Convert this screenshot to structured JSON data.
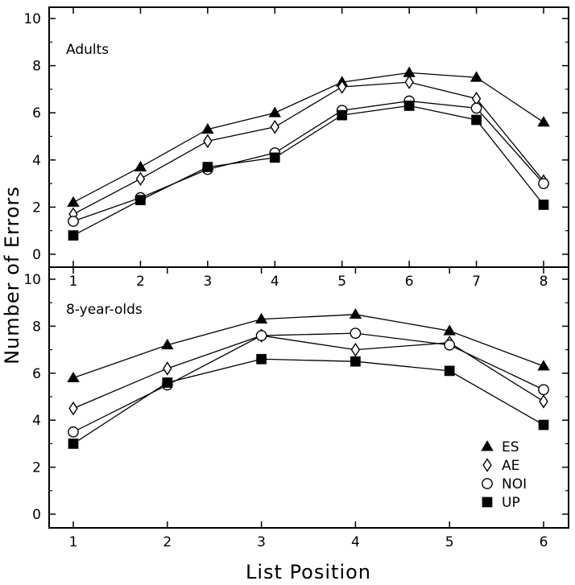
{
  "chart_data": {
    "type": "line",
    "ylabel": "Number of Errors",
    "xlabel": "List Position",
    "legend": {
      "placement": "bottom-right",
      "entries": [
        {
          "name": "ES",
          "marker": "triangle-filled"
        },
        {
          "name": "AE",
          "marker": "diamond-open"
        },
        {
          "name": "NOI",
          "marker": "circle-open"
        },
        {
          "name": "UP",
          "marker": "square-filled"
        }
      ]
    },
    "panels": [
      {
        "title": "Adults",
        "x": [
          1,
          2,
          3,
          4,
          5,
          6,
          7,
          8
        ],
        "ylim": [
          0,
          10
        ],
        "yticks": [
          0,
          2,
          4,
          6,
          8,
          10
        ],
        "series": [
          {
            "name": "ES",
            "marker": "triangle-filled",
            "values": [
              2.2,
              3.7,
              5.3,
              6.0,
              7.3,
              7.7,
              7.5,
              5.6
            ]
          },
          {
            "name": "AE",
            "marker": "diamond-open",
            "values": [
              1.7,
              3.2,
              4.8,
              5.4,
              7.1,
              7.3,
              6.6,
              3.1
            ]
          },
          {
            "name": "NOI",
            "marker": "circle-open",
            "values": [
              1.4,
              2.4,
              3.6,
              4.3,
              6.1,
              6.5,
              6.2,
              3.0
            ]
          },
          {
            "name": "UP",
            "marker": "square-filled",
            "values": [
              0.8,
              2.3,
              3.7,
              4.1,
              5.9,
              6.3,
              5.7,
              2.1
            ]
          }
        ]
      },
      {
        "title": "8-year-olds",
        "x": [
          1,
          2,
          3,
          4,
          5,
          6
        ],
        "ylim": [
          0,
          10
        ],
        "yticks": [
          0,
          2,
          4,
          6,
          8,
          10
        ],
        "series": [
          {
            "name": "ES",
            "marker": "triangle-filled",
            "values": [
              5.8,
              7.2,
              8.3,
              8.5,
              7.8,
              6.3
            ]
          },
          {
            "name": "AE",
            "marker": "diamond-open",
            "values": [
              4.5,
              6.2,
              7.6,
              7.0,
              7.3,
              4.8
            ]
          },
          {
            "name": "NOI",
            "marker": "circle-open",
            "values": [
              3.5,
              5.5,
              7.6,
              7.7,
              7.2,
              5.3
            ]
          },
          {
            "name": "UP",
            "marker": "square-filled",
            "values": [
              3.0,
              5.6,
              6.6,
              6.5,
              6.1,
              3.8
            ]
          }
        ]
      }
    ]
  }
}
